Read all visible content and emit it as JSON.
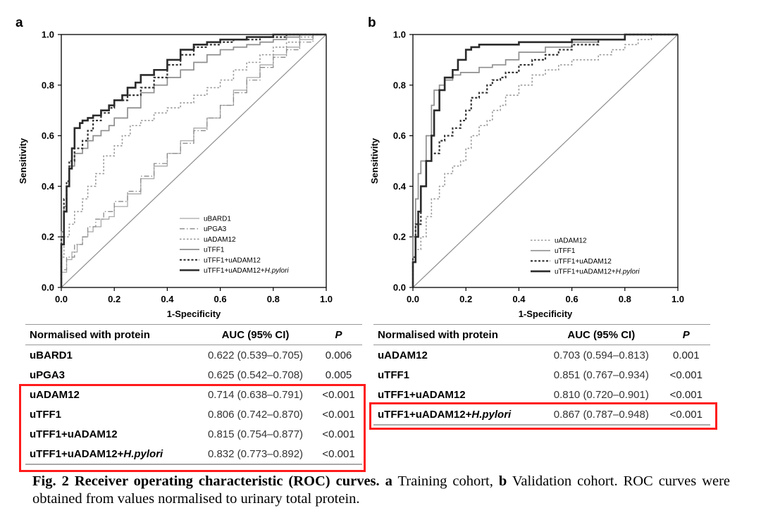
{
  "chart_data": [
    {
      "type": "line",
      "panel": "a",
      "xlabel": "1-Specificity",
      "ylabel": "Sensitivity",
      "xlim": [
        0,
        1
      ],
      "ylim": [
        0,
        1
      ],
      "ticks": [
        "0.0",
        "0.2",
        "0.4",
        "0.6",
        "0.8",
        "1.0"
      ],
      "legend_position": "bottom-right",
      "series": [
        {
          "name": "uBARD1",
          "style": "solid-light",
          "x": [
            0,
            0.02,
            0.04,
            0.06,
            0.08,
            0.1,
            0.12,
            0.15,
            0.18,
            0.2,
            0.25,
            0.3,
            0.35,
            0.4,
            0.45,
            0.5,
            0.55,
            0.6,
            0.65,
            0.7,
            0.75,
            0.8,
            0.85,
            0.9,
            0.95,
            1.0
          ],
          "y": [
            0,
            0.06,
            0.11,
            0.14,
            0.17,
            0.2,
            0.22,
            0.24,
            0.27,
            0.28,
            0.32,
            0.37,
            0.43,
            0.48,
            0.53,
            0.58,
            0.63,
            0.67,
            0.72,
            0.78,
            0.83,
            0.88,
            0.92,
            0.95,
            0.98,
            1.0
          ]
        },
        {
          "name": "uPGA3",
          "style": "dashdot",
          "x": [
            0,
            0.02,
            0.05,
            0.08,
            0.1,
            0.13,
            0.16,
            0.2,
            0.25,
            0.3,
            0.35,
            0.4,
            0.45,
            0.5,
            0.55,
            0.6,
            0.65,
            0.7,
            0.75,
            0.8,
            0.85,
            0.9,
            0.95,
            1.0
          ],
          "y": [
            0,
            0.07,
            0.12,
            0.17,
            0.2,
            0.24,
            0.27,
            0.3,
            0.34,
            0.38,
            0.44,
            0.49,
            0.53,
            0.57,
            0.62,
            0.67,
            0.72,
            0.77,
            0.82,
            0.87,
            0.91,
            0.94,
            0.97,
            1.0
          ]
        },
        {
          "name": "uADAM12",
          "style": "dotted",
          "x": [
            0,
            0.01,
            0.03,
            0.05,
            0.08,
            0.1,
            0.13,
            0.16,
            0.2,
            0.23,
            0.26,
            0.3,
            0.35,
            0.4,
            0.45,
            0.5,
            0.55,
            0.6,
            0.65,
            0.7,
            0.75,
            0.8,
            0.85,
            0.9,
            0.95,
            1.0
          ],
          "y": [
            0,
            0.12,
            0.2,
            0.25,
            0.3,
            0.35,
            0.4,
            0.45,
            0.52,
            0.56,
            0.6,
            0.64,
            0.66,
            0.69,
            0.71,
            0.73,
            0.76,
            0.79,
            0.82,
            0.86,
            0.89,
            0.92,
            0.95,
            0.97,
            0.99,
            1.0
          ]
        },
        {
          "name": "uTFF1",
          "style": "solid-gray",
          "x": [
            0,
            0.01,
            0.02,
            0.03,
            0.05,
            0.08,
            0.1,
            0.12,
            0.15,
            0.18,
            0.2,
            0.25,
            0.3,
            0.35,
            0.4,
            0.45,
            0.5,
            0.55,
            0.6,
            0.65,
            0.7,
            0.75,
            0.8,
            0.85,
            0.9,
            0.95,
            1.0
          ],
          "y": [
            0,
            0.22,
            0.32,
            0.4,
            0.48,
            0.53,
            0.55,
            0.58,
            0.6,
            0.62,
            0.64,
            0.67,
            0.71,
            0.77,
            0.8,
            0.83,
            0.86,
            0.89,
            0.92,
            0.94,
            0.95,
            0.96,
            0.97,
            0.98,
            0.99,
            1.0,
            1.0
          ]
        },
        {
          "name": "uTFF1+uADAM12",
          "style": "dashed-bold",
          "x": [
            0,
            0.01,
            0.02,
            0.03,
            0.05,
            0.08,
            0.1,
            0.12,
            0.15,
            0.18,
            0.2,
            0.25,
            0.3,
            0.35,
            0.4,
            0.45,
            0.5,
            0.55,
            0.6,
            0.65,
            0.7,
            0.75,
            0.8,
            0.85,
            0.9,
            0.95,
            1.0
          ],
          "y": [
            0,
            0.2,
            0.35,
            0.42,
            0.5,
            0.55,
            0.58,
            0.62,
            0.66,
            0.69,
            0.71,
            0.74,
            0.76,
            0.79,
            0.83,
            0.88,
            0.92,
            0.95,
            0.96,
            0.97,
            0.98,
            0.98,
            0.99,
            0.99,
            1.0,
            1.0,
            1.0
          ]
        },
        {
          "name": "uTFF1+uADAM12+H.pylori",
          "style": "solid-bold",
          "x": [
            0,
            0.01,
            0.02,
            0.03,
            0.04,
            0.05,
            0.07,
            0.08,
            0.1,
            0.12,
            0.15,
            0.18,
            0.2,
            0.23,
            0.25,
            0.28,
            0.3,
            0.35,
            0.4,
            0.45,
            0.5,
            0.55,
            0.6,
            0.65,
            0.7,
            0.75,
            0.8,
            0.9,
            1.0
          ],
          "y": [
            0,
            0.17,
            0.3,
            0.4,
            0.47,
            0.55,
            0.63,
            0.65,
            0.66,
            0.67,
            0.68,
            0.7,
            0.72,
            0.74,
            0.76,
            0.79,
            0.81,
            0.84,
            0.86,
            0.9,
            0.94,
            0.96,
            0.97,
            0.98,
            0.98,
            0.99,
            0.99,
            1.0,
            1.0
          ]
        }
      ]
    },
    {
      "type": "line",
      "panel": "b",
      "xlabel": "1-Specificity",
      "ylabel": "Sensitivity",
      "xlim": [
        0,
        1
      ],
      "ylim": [
        0,
        1
      ],
      "ticks": [
        "0.0",
        "0.2",
        "0.4",
        "0.6",
        "0.8",
        "1.0"
      ],
      "legend_position": "bottom-right",
      "series": [
        {
          "name": "uADAM12",
          "style": "dotted",
          "x": [
            0,
            0.01,
            0.03,
            0.05,
            0.07,
            0.1,
            0.12,
            0.15,
            0.18,
            0.2,
            0.22,
            0.25,
            0.28,
            0.3,
            0.33,
            0.35,
            0.4,
            0.45,
            0.5,
            0.55,
            0.6,
            0.65,
            0.7,
            0.75,
            0.8,
            0.85,
            0.9,
            0.95,
            1.0
          ],
          "y": [
            0,
            0.1,
            0.15,
            0.2,
            0.28,
            0.35,
            0.4,
            0.45,
            0.48,
            0.5,
            0.55,
            0.6,
            0.64,
            0.66,
            0.7,
            0.72,
            0.76,
            0.8,
            0.84,
            0.86,
            0.88,
            0.9,
            0.9,
            0.92,
            0.94,
            0.96,
            0.98,
            1.0,
            1.0
          ]
        },
        {
          "name": "uTFF1",
          "style": "solid-gray",
          "x": [
            0,
            0.01,
            0.02,
            0.03,
            0.05,
            0.07,
            0.08,
            0.1,
            0.12,
            0.15,
            0.18,
            0.2,
            0.25,
            0.3,
            0.35,
            0.4,
            0.5,
            0.6,
            0.7,
            0.8,
            0.9,
            1.0
          ],
          "y": [
            0,
            0.2,
            0.35,
            0.45,
            0.5,
            0.6,
            0.72,
            0.78,
            0.8,
            0.82,
            0.84,
            0.85,
            0.85,
            0.87,
            0.88,
            0.9,
            0.93,
            0.95,
            0.97,
            0.98,
            1.0,
            1.0
          ]
        },
        {
          "name": "uTFF1+uADAM12",
          "style": "dashed-bold",
          "x": [
            0,
            0.01,
            0.03,
            0.05,
            0.07,
            0.1,
            0.12,
            0.15,
            0.18,
            0.2,
            0.22,
            0.25,
            0.28,
            0.3,
            0.33,
            0.35,
            0.4,
            0.45,
            0.5,
            0.55,
            0.6,
            0.65,
            0.7,
            0.8,
            0.9,
            1.0
          ],
          "y": [
            0,
            0.12,
            0.25,
            0.4,
            0.5,
            0.53,
            0.58,
            0.6,
            0.63,
            0.66,
            0.7,
            0.75,
            0.77,
            0.8,
            0.82,
            0.83,
            0.85,
            0.88,
            0.9,
            0.92,
            0.94,
            0.96,
            0.96,
            0.98,
            1.0,
            1.0
          ]
        },
        {
          "name": "uTFF1+uADAM12+H.pylori",
          "style": "solid-bold",
          "x": [
            0,
            0.01,
            0.02,
            0.03,
            0.05,
            0.07,
            0.08,
            0.1,
            0.12,
            0.15,
            0.17,
            0.2,
            0.22,
            0.25,
            0.28,
            0.3,
            0.4,
            0.5,
            0.6,
            0.7,
            0.8,
            0.9,
            1.0
          ],
          "y": [
            0,
            0.1,
            0.2,
            0.3,
            0.4,
            0.5,
            0.6,
            0.7,
            0.78,
            0.83,
            0.86,
            0.9,
            0.94,
            0.95,
            0.96,
            0.96,
            0.96,
            0.97,
            0.97,
            0.98,
            0.98,
            1.0,
            1.0
          ]
        }
      ]
    }
  ],
  "panels": {
    "a": {
      "letter": "a"
    },
    "b": {
      "letter": "b"
    }
  },
  "tables": {
    "a": {
      "headers": [
        "Normalised with protein",
        "AUC (95% CI)",
        "P"
      ],
      "rows": [
        {
          "label": "uBARD1",
          "auc": "0.622 (0.539–0.705)",
          "p": "0.006",
          "highlight": false
        },
        {
          "label": "uPGA3",
          "auc": "0.625 (0.542–0.708)",
          "p": "0.005",
          "highlight": false
        },
        {
          "label": "uADAM12",
          "auc": "0.714 (0.638–0.791)",
          "p": "<0.001",
          "highlight": true
        },
        {
          "label": "uTFF1",
          "auc": "0.806 (0.742–0.870)",
          "p": "<0.001",
          "highlight": true
        },
        {
          "label": "uTFF1+uADAM12",
          "auc": "0.815 (0.754–0.877)",
          "p": "<0.001",
          "highlight": true
        },
        {
          "label_prefix": "uTFF1+uADAM12+",
          "label_italic": "H.pylori",
          "auc": "0.832 (0.773–0.892)",
          "p": "<0.001",
          "highlight": true
        }
      ]
    },
    "b": {
      "headers": [
        "Normalised with protein",
        "AUC (95% CI)",
        "P"
      ],
      "rows": [
        {
          "label": "uADAM12",
          "auc": "0.703 (0.594–0.813)",
          "p": "0.001",
          "highlight": false
        },
        {
          "label": "uTFF1",
          "auc": "0.851 (0.767–0.934)",
          "p": "<0.001",
          "highlight": false
        },
        {
          "label": "uTFF1+uADAM12",
          "auc": "0.810 (0.720–0.901)",
          "p": "<0.001",
          "highlight": false
        },
        {
          "label_prefix": "uTFF1+uADAM12+",
          "label_italic": "H.pylori",
          "auc": "0.867 (0.787–0.948)",
          "p": "<0.001",
          "highlight": true
        }
      ]
    }
  },
  "caption": {
    "fig": "Fig. 2",
    "title": "Receiver operating characteristic (ROC) curves.",
    "a": "a",
    "a_text": "Training cohort,",
    "b": "b",
    "b_text": "Validation cohort.",
    "rest": "ROC curves were obtained from values normalised to urinary total protein."
  },
  "colors": {
    "highlight_box": "#ff1a1a",
    "bold_line": "#2b2b2b",
    "gray_line": "#9a9a9a",
    "diagonal": "#8c8c8c"
  }
}
